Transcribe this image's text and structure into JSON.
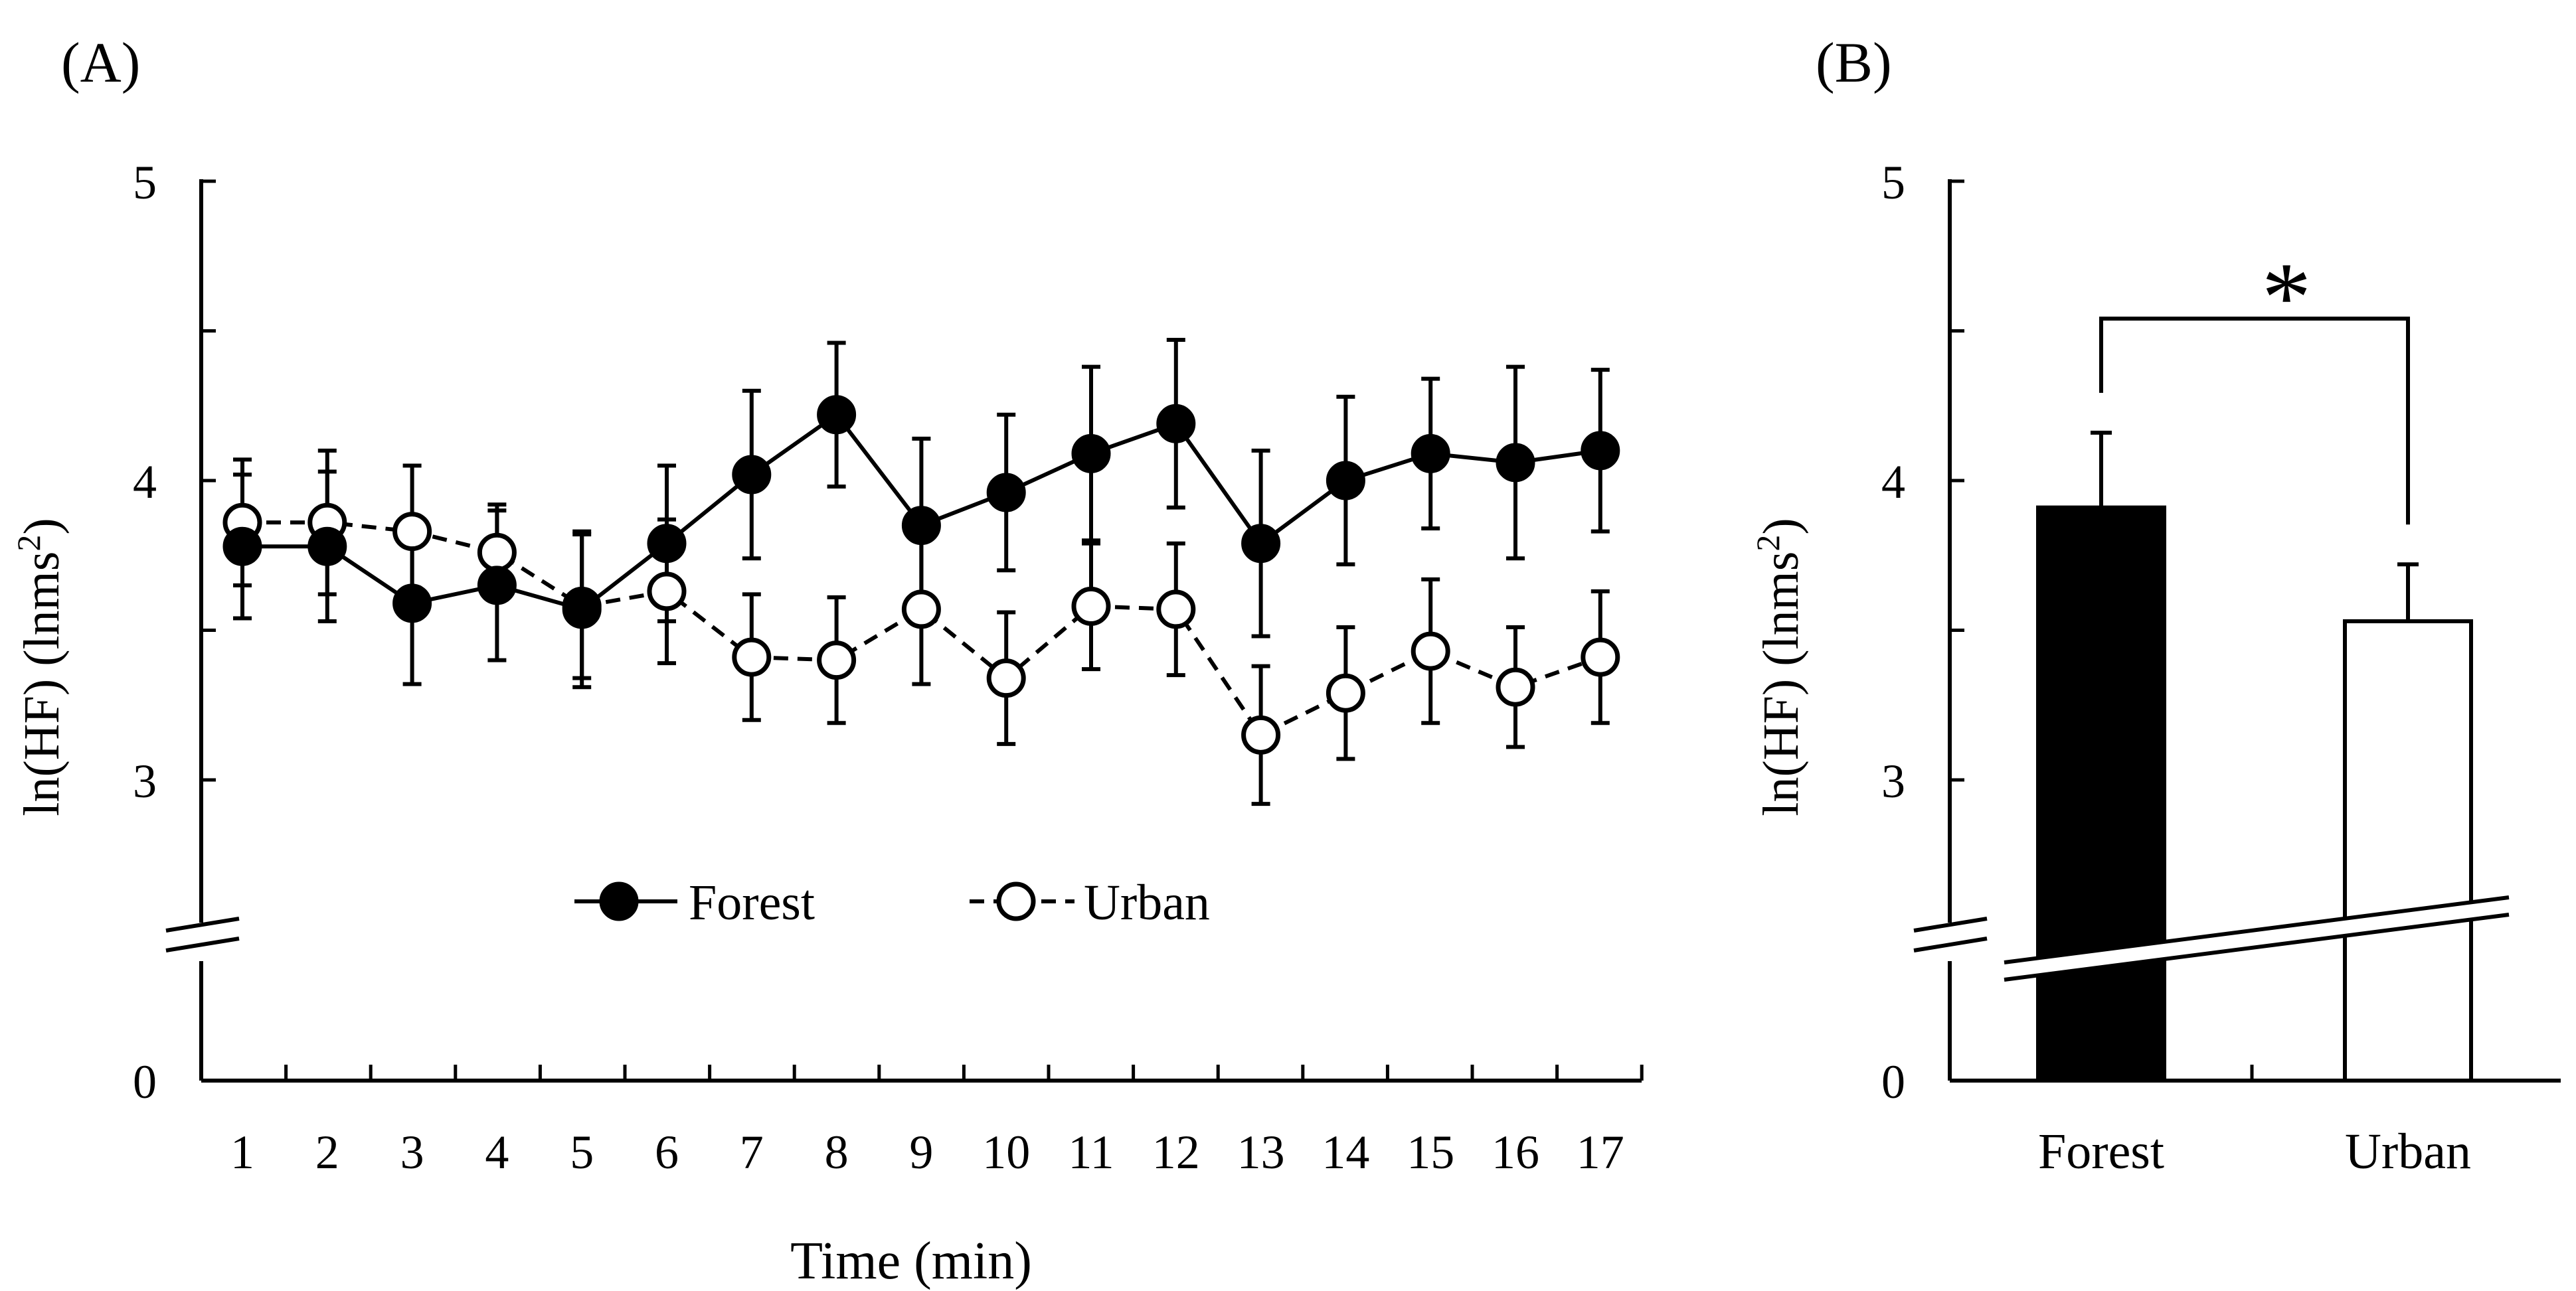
{
  "chart_data": [
    {
      "panel_label": "(A)",
      "type": "line",
      "xlabel": "Time (min)",
      "ylabel": "ln(HF) (lnms",
      "ylabel_sup": "2",
      "ylabel_close": ")",
      "categories": [
        "1",
        "2",
        "3",
        "4",
        "5",
        "6",
        "7",
        "8",
        "9",
        "10",
        "11",
        "12",
        "13",
        "14",
        "15",
        "16",
        "17"
      ],
      "yticks": [
        "0",
        "3",
        "4",
        "5"
      ],
      "ylim": [
        2.3,
        5
      ],
      "axis_break": true,
      "series": [
        {
          "name": "Forest",
          "marker": "filled-circle",
          "line": "solid",
          "values": [
            3.78,
            3.78,
            3.59,
            3.65,
            3.57,
            3.79,
            4.02,
            4.22,
            3.85,
            3.96,
            4.09,
            4.19,
            3.79,
            4.0,
            4.09,
            4.06,
            4.1
          ],
          "errors": [
            0.24,
            0.25,
            0.27,
            0.25,
            0.26,
            0.26,
            0.28,
            0.24,
            0.29,
            0.26,
            0.29,
            0.28,
            0.31,
            0.28,
            0.25,
            0.32,
            0.27
          ]
        },
        {
          "name": "Urban",
          "marker": "open-circle",
          "line": "dashed",
          "values": [
            3.86,
            3.86,
            3.83,
            3.76,
            3.58,
            3.63,
            3.41,
            3.4,
            3.57,
            3.34,
            3.58,
            3.57,
            3.15,
            3.29,
            3.43,
            3.31,
            3.41
          ],
          "errors": [
            0.21,
            0.24,
            0.22,
            0.16,
            0.24,
            0.24,
            0.21,
            0.21,
            0.25,
            0.22,
            0.21,
            0.22,
            0.23,
            0.22,
            0.24,
            0.2,
            0.22
          ]
        }
      ],
      "legend": [
        "Forest",
        "Urban"
      ]
    },
    {
      "panel_label": "(B)",
      "type": "bar",
      "ylabel": "ln(HF) (lnms",
      "ylabel_sup": "2",
      "ylabel_close": ")",
      "categories": [
        "Forest",
        "Urban"
      ],
      "values": [
        3.91,
        3.53
      ],
      "errors": [
        0.25,
        0.19
      ],
      "colors": [
        "#000000",
        "#ffffff"
      ],
      "yticks": [
        "0",
        "3",
        "4",
        "5"
      ],
      "ylim": [
        2.3,
        5
      ],
      "axis_break": true,
      "significance": "*"
    }
  ]
}
